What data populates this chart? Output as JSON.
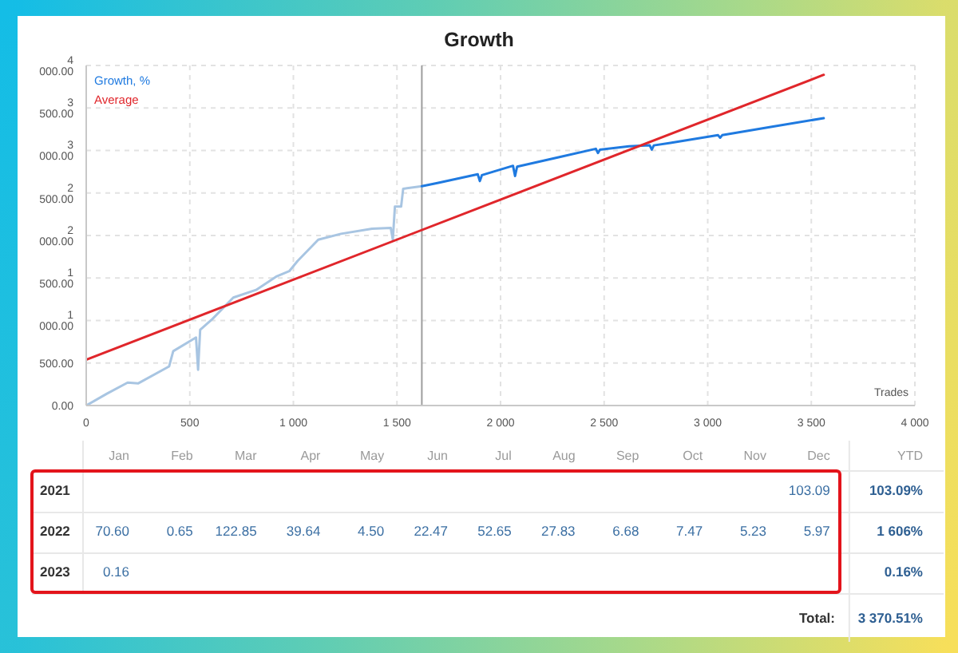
{
  "chart_data": [
    {
      "type": "line",
      "title": "Growth",
      "xlabel": "Trades",
      "xlim": [
        0,
        4000
      ],
      "ylim": [
        0,
        4000
      ],
      "xticks": [
        0,
        500,
        {
          "value": 1000,
          "label": "1 000"
        },
        {
          "value": 1500,
          "label": "1 500"
        },
        {
          "value": 2000,
          "label": "2 000"
        },
        {
          "value": 2500,
          "label": "2 500"
        },
        {
          "value": 3000,
          "label": "3 000"
        },
        {
          "value": 3500,
          "label": "3 500"
        },
        {
          "value": 4000,
          "label": "4 000"
        }
      ],
      "yticks": [
        {
          "value": 0,
          "label": "0.00"
        },
        {
          "value": 500,
          "label": "500.00"
        },
        {
          "value": 1000,
          "label": "1 000.00"
        },
        {
          "value": 1500,
          "label": "1 500.00"
        },
        {
          "value": 2000,
          "label": "2 000.00"
        },
        {
          "value": 2500,
          "label": "2 500.00"
        },
        {
          "value": 3000,
          "label": "3 000.00"
        },
        {
          "value": 3500,
          "label": "3 500.00"
        },
        {
          "value": 4000,
          "label": "4 000.00"
        }
      ],
      "grid": true,
      "legend": "top left",
      "ref_lines": [
        {
          "axis": "x",
          "value": 1620,
          "color": "#9e9e9e"
        }
      ],
      "series": [
        {
          "color": "#a8c5e2",
          "x": [
            0,
            100,
            200,
            250,
            400,
            420,
            530,
            540,
            550,
            610,
            710,
            820,
            920,
            980,
            1020,
            1120,
            1230,
            1380,
            1470,
            1480,
            1490,
            1520,
            1530,
            1620
          ],
          "values": [
            0,
            140,
            270,
            260,
            460,
            640,
            800,
            420,
            890,
            1020,
            1270,
            1360,
            1520,
            1580,
            1700,
            1950,
            2020,
            2080,
            2090,
            1950,
            2340,
            2340,
            2550,
            2580
          ]
        },
        {
          "name": "Growth, %",
          "color": "#1f7ae0",
          "x": [
            1620,
            1700,
            1890,
            1900,
            1910,
            2060,
            2070,
            2080,
            2280,
            2460,
            2470,
            2480,
            2620,
            2720,
            2730,
            2740,
            2820,
            3050,
            3060,
            3070,
            3310,
            3560
          ],
          "values": [
            2580,
            2620,
            2720,
            2640,
            2710,
            2820,
            2700,
            2810,
            2920,
            3020,
            2970,
            3010,
            3050,
            3060,
            3010,
            3060,
            3090,
            3180,
            3150,
            3180,
            3280,
            3380
          ]
        },
        {
          "name": "Average",
          "color": "#e0262b",
          "x": [
            0,
            3560
          ],
          "values": [
            540,
            3890
          ]
        }
      ]
    },
    {
      "type": "other",
      "categories": [
        "Jan",
        "Feb",
        "Mar",
        "Apr",
        "May",
        "Jun",
        "Jul",
        "Aug",
        "Sep",
        "Oct",
        "Nov",
        "Dec",
        "YTD"
      ],
      "y_categories": [
        "2021",
        "2022",
        "2023"
      ],
      "cell_labels": [
        [
          null,
          null,
          null,
          null,
          null,
          null,
          null,
          null,
          null,
          null,
          null,
          "103.09",
          "103.09%"
        ],
        [
          "70.60",
          "0.65",
          "122.85",
          "39.64",
          "4.50",
          "22.47",
          "52.65",
          "27.83",
          "6.68",
          "7.47",
          "5.23",
          "5.97",
          "1 606%"
        ],
        [
          "0.16",
          null,
          null,
          null,
          null,
          null,
          null,
          null,
          null,
          null,
          null,
          null,
          "0.16%"
        ]
      ],
      "annotations": [
        "Total:",
        "3 370.51%"
      ]
    }
  ]
}
